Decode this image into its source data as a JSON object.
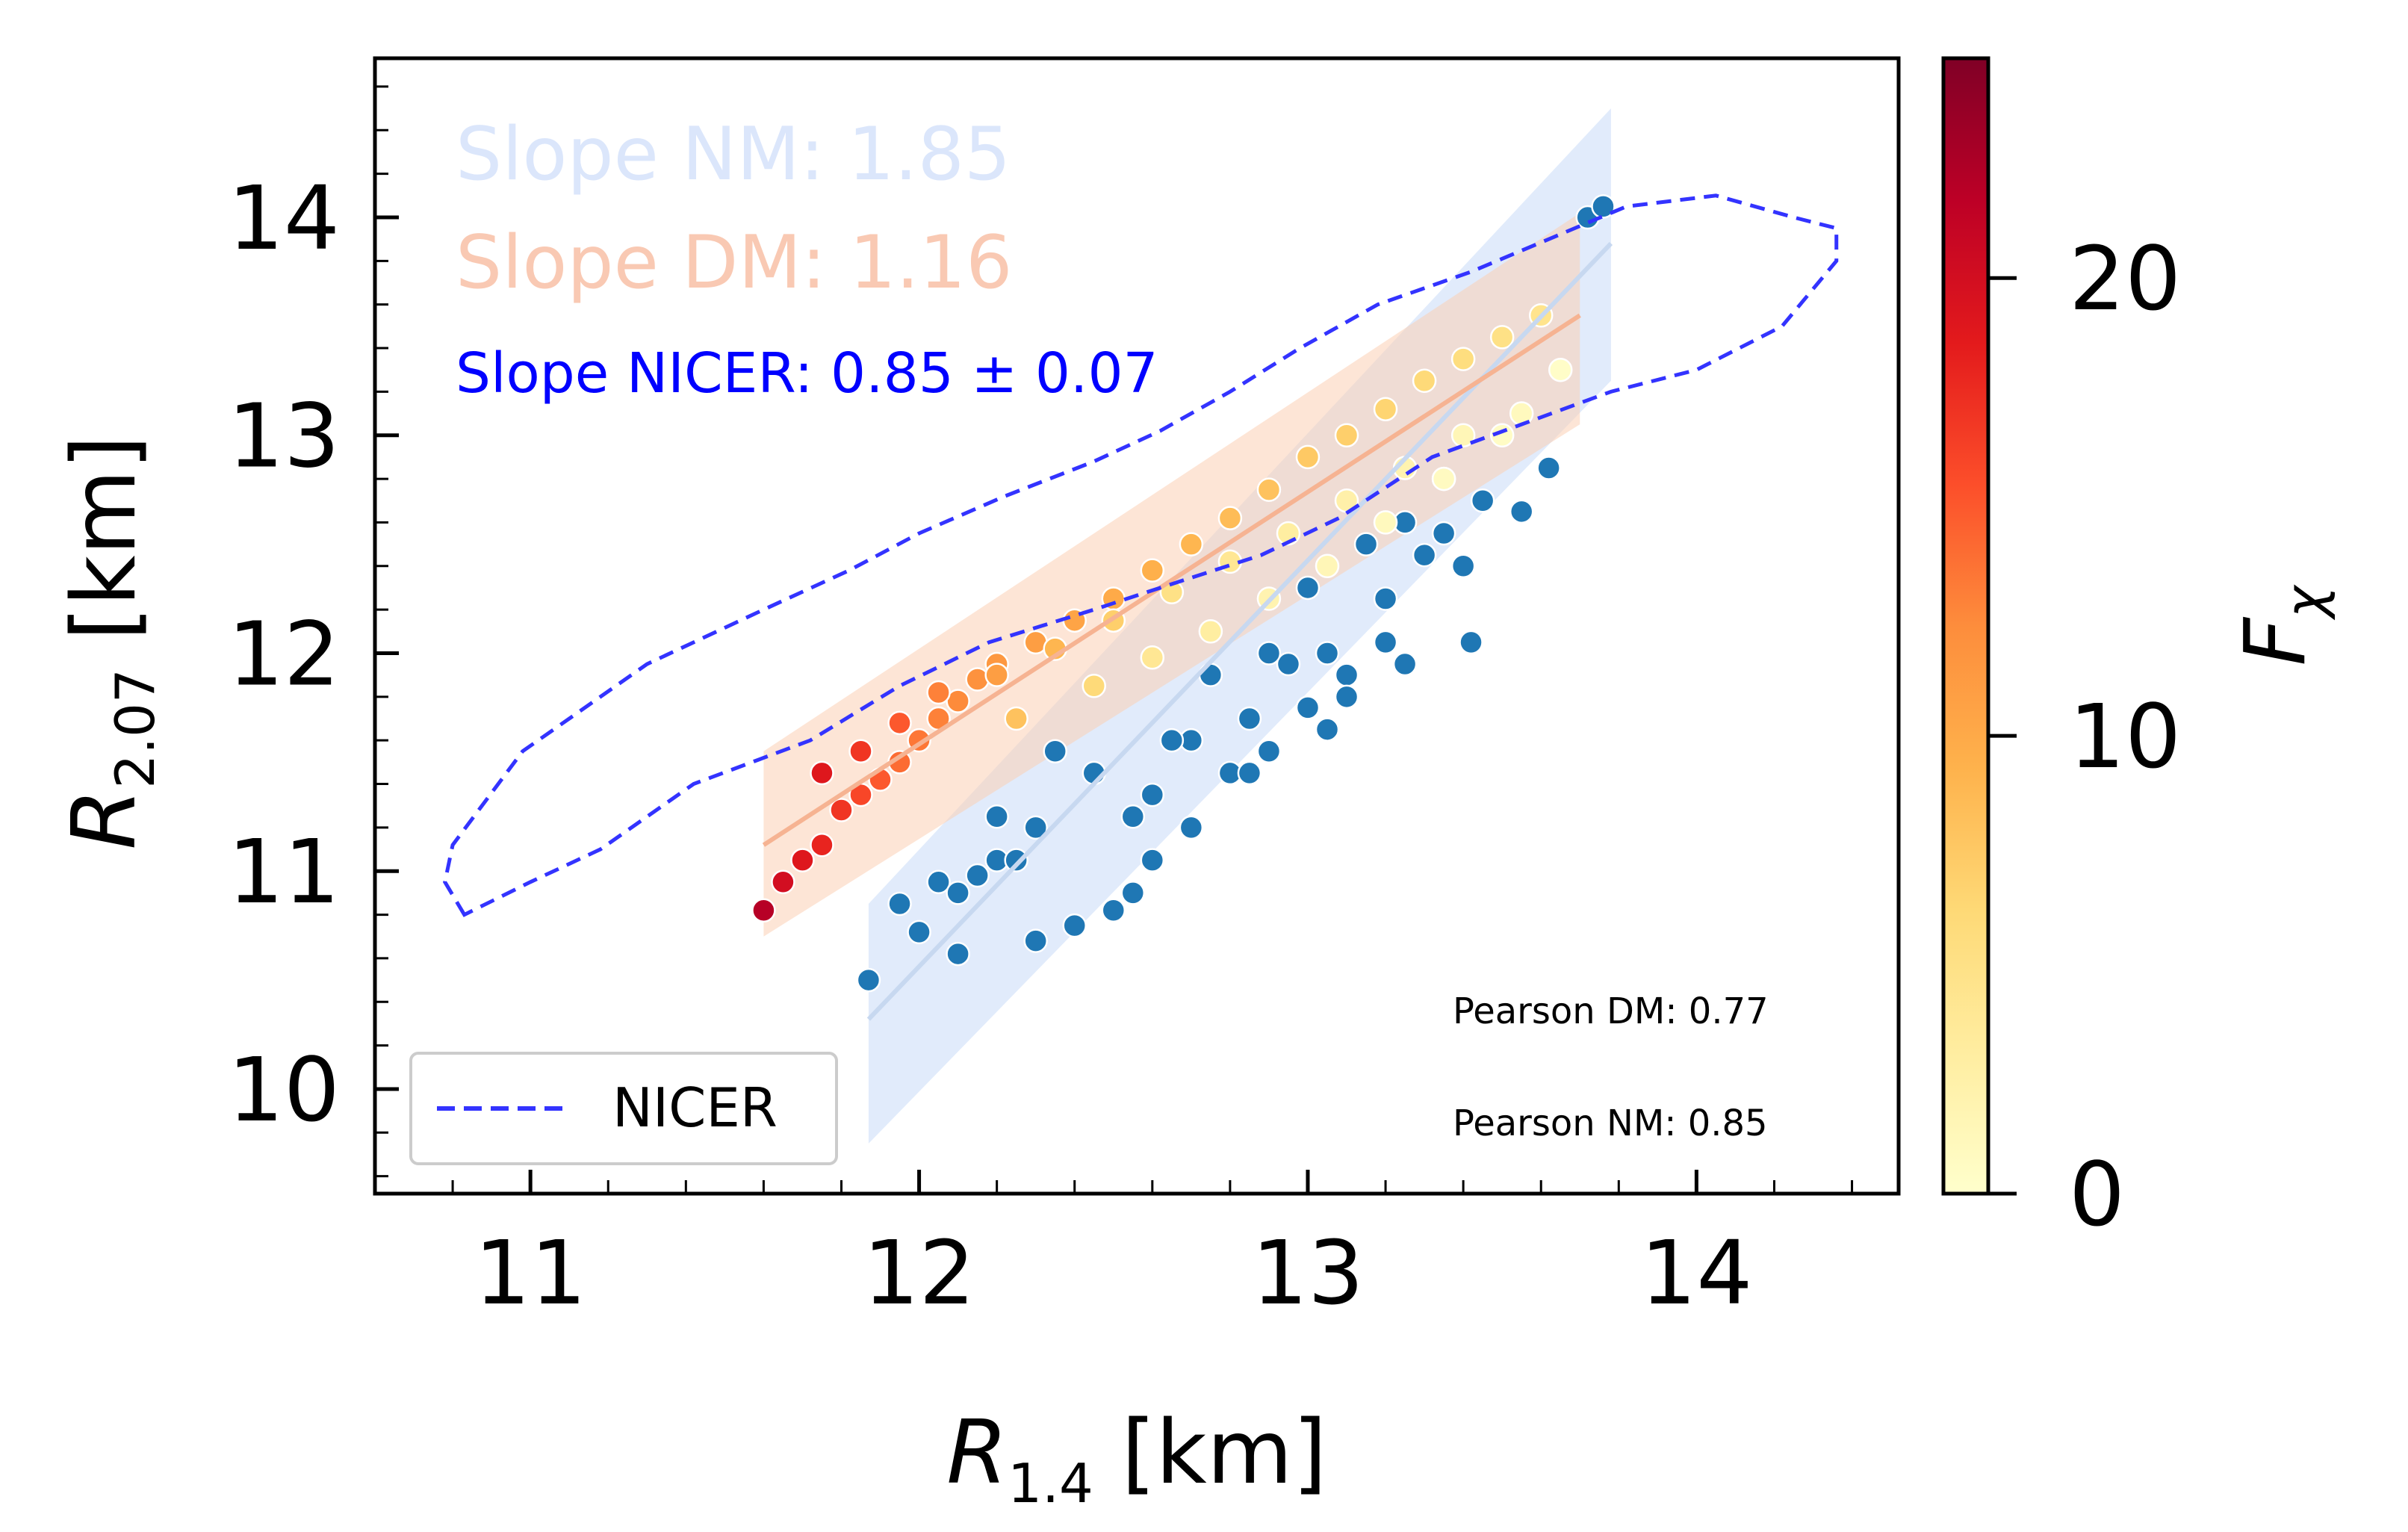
{
  "chart_data": {
    "type": "scatter",
    "xlabel": "R_{1.4} [km]",
    "ylabel": "R_{2.07} [km]",
    "xlim": [
      10.6,
      14.52
    ],
    "ylim": [
      9.52,
      14.73
    ],
    "x_ticks": [
      11,
      12,
      13,
      14
    ],
    "y_ticks": [
      10,
      11,
      12,
      13,
      14
    ],
    "x_tick_labels": [
      "11",
      "12",
      "13",
      "14"
    ],
    "y_tick_labels": [
      "10",
      "11",
      "12",
      "13",
      "14"
    ],
    "colorbar": {
      "label": "F_χ",
      "range": [
        0,
        24.8
      ],
      "ticks": [
        0,
        10,
        20
      ],
      "tick_labels": [
        "0",
        "10",
        "20"
      ],
      "colormap": "YlOrRd",
      "colors": [
        "#ffffcc",
        "#ffeda0",
        "#fed976",
        "#feb24c",
        "#fd8d3c",
        "#fc4e2a",
        "#e31a1c",
        "#bd0026",
        "#800026"
      ]
    },
    "annotations": [
      {
        "text": "Slope NM: 1.85",
        "color": "#dbe6fb"
      },
      {
        "text": "Slope DM: 1.16",
        "color": "#f9c9b3"
      },
      {
        "text": "Slope NICER: 0.85 ± 0.07",
        "color": "#0000ff"
      },
      {
        "text": "Pearson DM: 0.77",
        "color": "#000000"
      },
      {
        "text": "Pearson NM: 0.85",
        "color": "#000000"
      }
    ],
    "legend": {
      "position": "lower-left",
      "entries": [
        {
          "label": "NICER",
          "style": "dashed",
          "color": "#3333ff"
        }
      ]
    },
    "series": [
      {
        "name": "NICER",
        "kind": "contour-dashed",
        "color": "#3333ff",
        "x": [
          10.83,
          10.78,
          10.8,
          10.98,
          11.3,
          11.6,
          11.82,
          12.0,
          12.22,
          12.45,
          12.62,
          12.8,
          12.98,
          13.18,
          13.42,
          13.62,
          13.82,
          14.05,
          14.25,
          14.36,
          14.36,
          14.22,
          14.0,
          13.78,
          13.55,
          13.32,
          13.08,
          12.88,
          12.62,
          12.45,
          12.18,
          11.95,
          11.72,
          11.42,
          11.18,
          11.0,
          10.83
        ],
        "y": [
          10.8,
          10.95,
          11.12,
          11.55,
          11.95,
          12.2,
          12.38,
          12.55,
          12.72,
          12.88,
          13.02,
          13.2,
          13.4,
          13.6,
          13.75,
          13.9,
          14.05,
          14.1,
          14.0,
          13.95,
          13.8,
          13.5,
          13.3,
          13.2,
          13.05,
          12.9,
          12.62,
          12.45,
          12.3,
          12.2,
          12.05,
          11.85,
          11.6,
          11.4,
          11.1,
          10.95,
          10.8
        ]
      },
      {
        "name": "NM points",
        "kind": "scatter",
        "color": "#1f77b4",
        "x": [
          11.87,
          11.95,
          12.0,
          12.05,
          12.1,
          12.15,
          12.2,
          12.3,
          12.4,
          12.5,
          12.55,
          12.6,
          12.7,
          12.8,
          12.9,
          13.0,
          13.1,
          13.2,
          13.3,
          13.35,
          13.45,
          13.55,
          13.62,
          13.72,
          13.76,
          12.6,
          12.7,
          12.85,
          12.95,
          13.05,
          13.2,
          12.3,
          12.45,
          12.75,
          13.0,
          13.15,
          13.25,
          13.35,
          13.42,
          12.2,
          12.35,
          12.65,
          12.9,
          13.1,
          13.4,
          12.1,
          12.25,
          12.55,
          12.85,
          13.05,
          13.25
        ],
        "y": [
          10.5,
          10.85,
          10.72,
          10.95,
          10.62,
          10.98,
          11.05,
          10.68,
          10.75,
          10.82,
          10.9,
          11.05,
          11.2,
          11.45,
          11.55,
          11.75,
          11.9,
          12.05,
          12.45,
          12.55,
          12.7,
          12.65,
          12.85,
          14.0,
          14.05,
          11.35,
          11.6,
          11.7,
          11.95,
          12.0,
          12.25,
          11.2,
          11.45,
          11.9,
          12.3,
          12.5,
          12.6,
          12.8,
          12.05,
          11.25,
          11.55,
          11.6,
          12.0,
          11.8,
          12.4,
          10.9,
          11.05,
          11.25,
          11.45,
          11.65,
          11.95
        ]
      },
      {
        "name": "DM points",
        "kind": "scatter-colormap",
        "x": [
          11.6,
          11.65,
          11.7,
          11.75,
          11.8,
          11.85,
          11.9,
          11.95,
          12.0,
          12.05,
          12.1,
          12.15,
          12.2,
          12.3,
          12.4,
          12.5,
          12.6,
          12.7,
          12.8,
          12.9,
          13.0,
          13.1,
          13.2,
          13.3,
          13.4,
          13.5,
          13.6,
          11.75,
          11.85,
          11.95,
          12.05,
          12.2,
          12.35,
          12.5,
          12.65,
          12.8,
          12.95,
          13.1,
          13.25,
          13.4,
          13.55,
          12.25,
          12.45,
          12.6,
          12.75,
          12.9,
          13.05,
          13.2,
          13.35,
          13.5,
          13.65
        ],
        "y": [
          10.82,
          10.95,
          11.05,
          11.12,
          11.28,
          11.35,
          11.42,
          11.5,
          11.6,
          11.7,
          11.78,
          11.88,
          11.95,
          12.05,
          12.15,
          12.25,
          12.38,
          12.5,
          12.62,
          12.75,
          12.9,
          13.0,
          13.12,
          13.25,
          13.35,
          13.45,
          13.55,
          11.45,
          11.55,
          11.68,
          11.82,
          11.9,
          12.02,
          12.15,
          12.28,
          12.42,
          12.55,
          12.7,
          12.85,
          13.0,
          13.1,
          11.7,
          11.85,
          11.98,
          12.1,
          12.25,
          12.4,
          12.6,
          12.8,
          13.0,
          13.3
        ],
        "f": [
          22,
          20,
          19,
          18,
          17,
          16,
          15,
          14,
          13.5,
          13,
          12.5,
          12,
          11.5,
          11,
          10.5,
          10,
          9.5,
          9,
          8.5,
          8,
          7.5,
          7,
          6.5,
          6,
          5.5,
          5,
          4.5,
          19,
          17,
          15,
          13,
          11,
          9,
          7,
          5,
          4,
          3,
          2.5,
          2,
          1.5,
          1,
          8,
          6,
          4,
          3,
          2,
          1.5,
          1,
          0.8,
          0.5,
          0.3
        ]
      },
      {
        "name": "NM band",
        "kind": "band",
        "color": "#c9dbf7",
        "x": [
          11.87,
          13.78
        ],
        "y_low": [
          9.75,
          13.25
        ],
        "y_high": [
          10.85,
          14.5
        ]
      },
      {
        "name": "DM band",
        "kind": "band",
        "color": "#fbd0b5",
        "x": [
          11.6,
          13.7
        ],
        "y_low": [
          10.7,
          13.05
        ],
        "y_high": [
          11.55,
          14.02
        ]
      },
      {
        "name": "NM fit",
        "kind": "line",
        "color": "#c7d8f0",
        "x": [
          11.87,
          13.78
        ],
        "y": [
          10.32,
          13.88
        ]
      },
      {
        "name": "DM fit",
        "kind": "line",
        "color": "#f6b392",
        "x": [
          11.6,
          13.7
        ],
        "y": [
          11.12,
          13.55
        ]
      }
    ]
  }
}
